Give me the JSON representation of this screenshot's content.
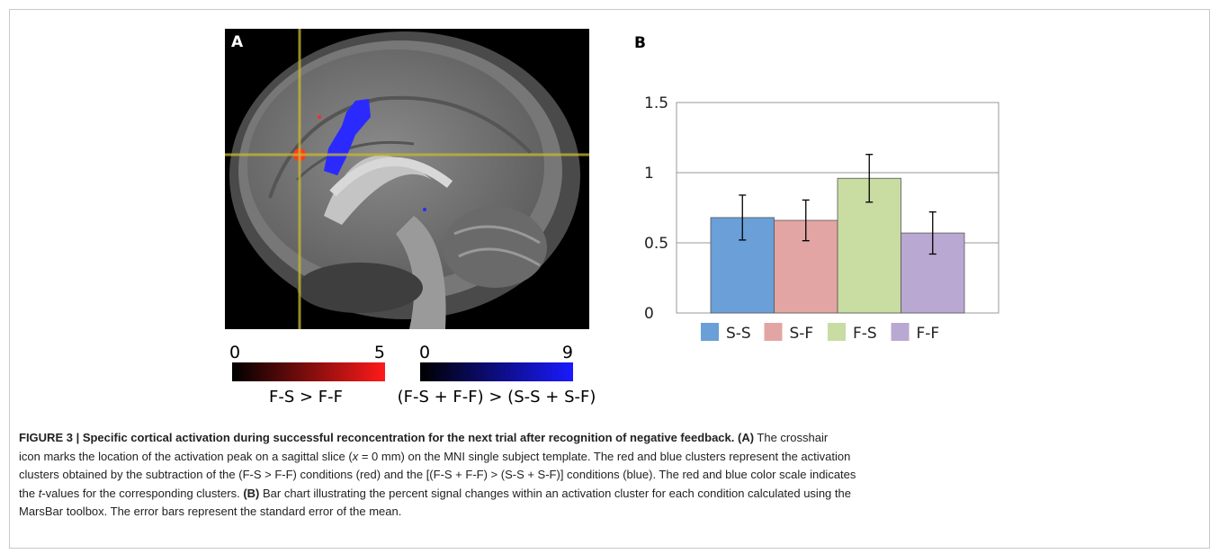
{
  "panel_a": {
    "label": "A",
    "scales": [
      {
        "min": 0,
        "max": 5,
        "label": "F-S > F-F"
      },
      {
        "min": 0,
        "max": 9,
        "label": "(F-S + F-F) > (S-S + S-F)"
      }
    ]
  },
  "chart_data": {
    "type": "bar",
    "label": "B",
    "categories": [
      null
    ],
    "series": [
      {
        "name": "S-S",
        "color": "#6a9fd8",
        "values": [
          0.68
        ],
        "errors": [
          0.16
        ]
      },
      {
        "name": "S-F",
        "color": "#e3a5a3",
        "values": [
          0.66
        ],
        "errors": [
          0.145
        ]
      },
      {
        "name": "F-S",
        "color": "#c9dca2",
        "values": [
          0.96
        ],
        "errors": [
          0.17
        ]
      },
      {
        "name": "F-F",
        "color": "#b9a8d2",
        "values": [
          0.57
        ],
        "errors": [
          0.15
        ]
      }
    ],
    "ylim": [
      0,
      1.5
    ],
    "yticks": [
      0,
      0.5,
      1,
      1.5
    ],
    "grid": true
  },
  "caption": {
    "lines": [
      [
        "FIGURE 3 | Specific cortical activation during successful reconcentration for the next trial after recognition of negative feedback. (A)",
        " The crosshair"
      ],
      [
        "icon marks the location of the activation peak on a sagittal slice (",
        "x",
        " = 0 mm) on the MNI single subject template. The red and blue clusters represent the activation"
      ],
      [
        "clusters obtained by the subtraction of the (F-S > F-F) conditions (red) and the [(F-S + F-F) > (S-S + S-F)] conditions (blue). The red and blue color scale indicates"
      ],
      [
        "the ",
        "t",
        "-values for the corresponding clusters. ",
        "(B)",
        " Bar chart illustrating the percent signal changes within an activation cluster for each condition calculated using the"
      ],
      [
        "MarsBar toolbox. The error bars represent the standard error of the mean."
      ]
    ]
  }
}
